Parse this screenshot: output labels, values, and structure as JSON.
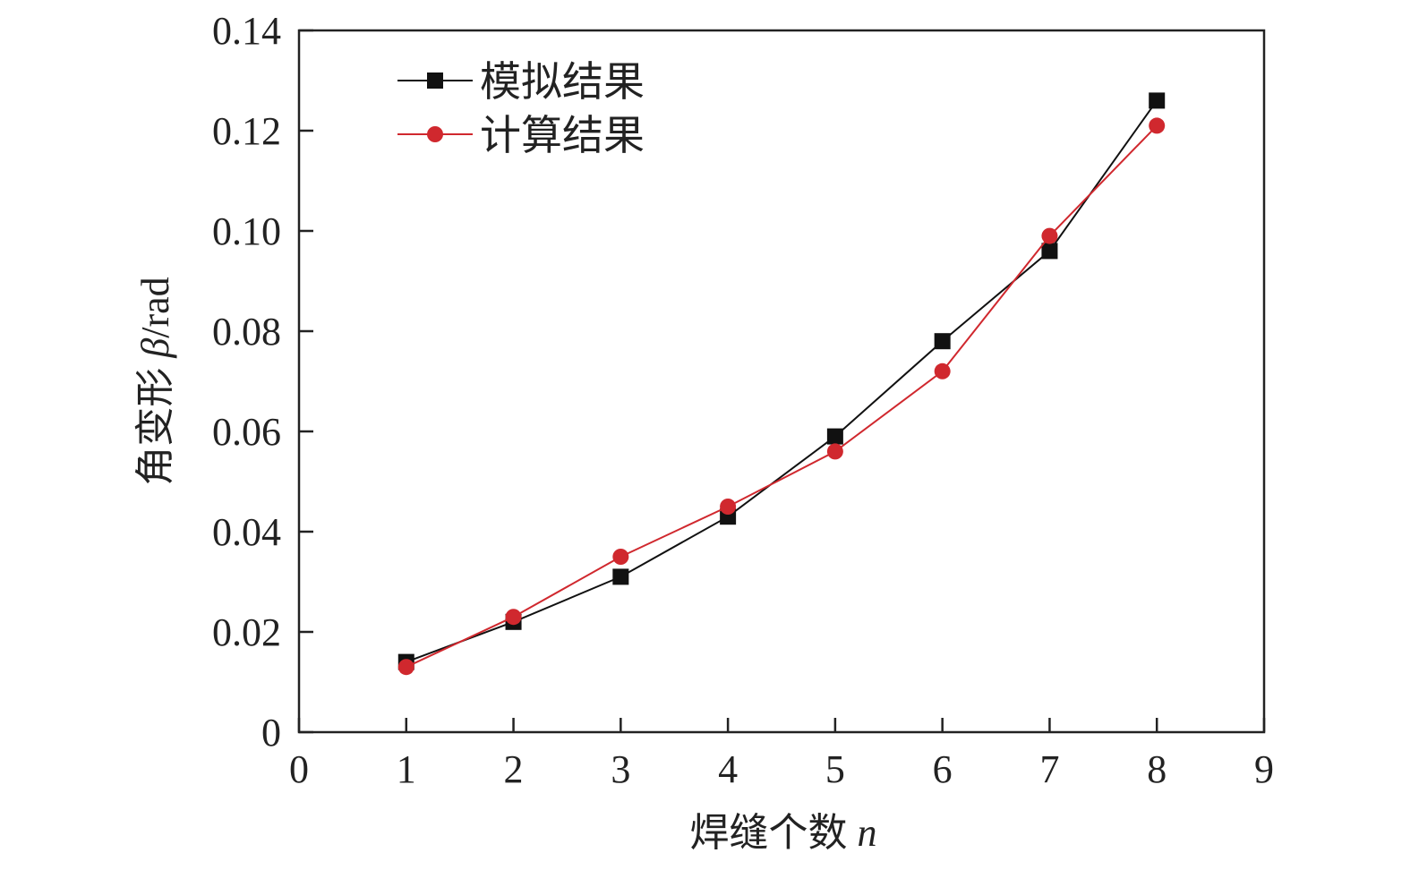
{
  "chart_data": {
    "type": "line",
    "title": "",
    "xlabel": "焊缝个数",
    "xlabel_var": "n",
    "ylabel": "角变形",
    "ylabel_var": "β",
    "ylabel_unit": "/rad",
    "xlim": [
      0,
      9
    ],
    "ylim": [
      0,
      0.14
    ],
    "xticks": [
      "0",
      "1",
      "2",
      "3",
      "4",
      "5",
      "6",
      "7",
      "8",
      "9"
    ],
    "yticks": [
      "0",
      "0.02",
      "0.04",
      "0.06",
      "0.08",
      "0.10",
      "0.12",
      "0.14"
    ],
    "grid": false,
    "legend_position": "top-left",
    "x": [
      1,
      2,
      3,
      4,
      5,
      6,
      7,
      8
    ],
    "series": [
      {
        "name": "模拟结果",
        "color": "#111111",
        "marker": "square",
        "values": [
          0.014,
          0.022,
          0.031,
          0.043,
          0.059,
          0.078,
          0.096,
          0.126
        ]
      },
      {
        "name": "计算结果",
        "color": "#d0282e",
        "marker": "circle",
        "values": [
          0.013,
          0.023,
          0.035,
          0.045,
          0.056,
          0.072,
          0.099,
          0.121
        ]
      }
    ]
  }
}
